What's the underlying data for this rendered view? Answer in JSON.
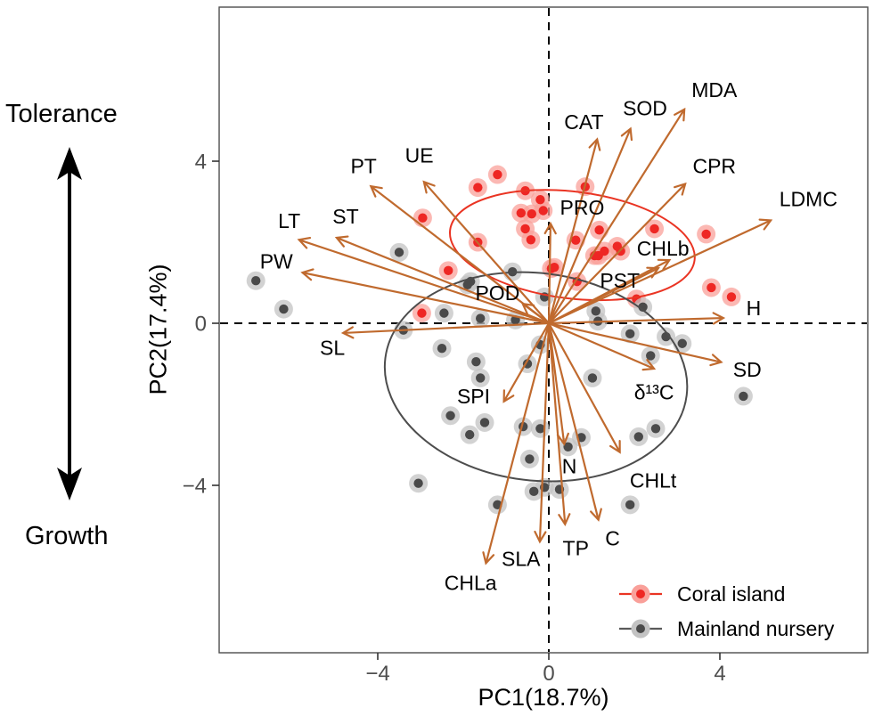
{
  "annotations": {
    "top_label": "Tolerance",
    "bottom_label": "Growth"
  },
  "axes": {
    "x_title": "PC1(18.7%)",
    "y_title": "PC2(17.4%)",
    "x_ticks": [
      -4,
      0,
      4
    ],
    "y_ticks": [
      4,
      0,
      -4
    ],
    "tick_color": "#4d4d4d",
    "panel_border_color": "#4d4d4d"
  },
  "legend": {
    "items": [
      {
        "label": "Coral island",
        "core_color": "#ee2724",
        "halo_color": "#f9a09a",
        "line_color": "#ea3423"
      },
      {
        "label": "Mainland nursery",
        "core_color": "#4a4a4a",
        "halo_color": "#c3c3c3",
        "line_color": "#5a5a5a"
      }
    ]
  },
  "chart_data": {
    "type": "scatter",
    "xlabel": "PC1(18.7%)",
    "ylabel": "PC2(17.4%)",
    "xlim": [
      -7.7,
      7.5
    ],
    "ylim": [
      -8.1,
      7.8
    ],
    "x_ticks": [
      -4,
      0,
      4
    ],
    "y_ticks": [
      -4,
      0,
      4
    ],
    "grid": false,
    "zero_lines_dashed": true,
    "legend_position": "inside-bottom-right",
    "vector_color": "#c06a2e",
    "series": [
      {
        "name": "Coral island",
        "core_color": "#ee2724",
        "halo_color": "#f9a09a",
        "points": [
          [
            -1.66,
            3.35
          ],
          [
            -1.2,
            3.67
          ],
          [
            -0.55,
            3.27
          ],
          [
            -0.2,
            3.05
          ],
          [
            0.85,
            3.37
          ],
          [
            -0.65,
            2.72
          ],
          [
            -0.4,
            2.7
          ],
          [
            -0.13,
            2.78
          ],
          [
            -0.55,
            2.33
          ],
          [
            -0.42,
            2.06
          ],
          [
            -1.66,
            2.0
          ],
          [
            1.18,
            2.3
          ],
          [
            0.63,
            2.05
          ],
          [
            1.6,
            1.9
          ],
          [
            1.16,
            1.67
          ],
          [
            0.06,
            1.35
          ],
          [
            0.66,
            1.03
          ],
          [
            2.47,
            2.33
          ],
          [
            3.68,
            2.2
          ],
          [
            -2.95,
            2.6
          ],
          [
            -2.35,
            1.3
          ],
          [
            -2.97,
            0.25
          ],
          [
            0.13,
            1.38
          ],
          [
            1.07,
            1.67
          ],
          [
            1.3,
            1.78
          ],
          [
            1.68,
            1.78
          ],
          [
            2.05,
            0.6
          ],
          [
            3.8,
            0.88
          ],
          [
            4.27,
            0.65
          ]
        ]
      },
      {
        "name": "Mainland nursery",
        "core_color": "#4a4a4a",
        "halo_color": "#c3c3c3",
        "points": [
          [
            -6.85,
            1.05
          ],
          [
            -6.2,
            0.35
          ],
          [
            -3.5,
            1.75
          ],
          [
            -1.9,
            0.95
          ],
          [
            -2.45,
            0.25
          ],
          [
            -0.85,
            1.27
          ],
          [
            -1.83,
            1.03
          ],
          [
            -0.1,
            0.65
          ],
          [
            -1.6,
            0.12
          ],
          [
            -0.78,
            0.08
          ],
          [
            -3.4,
            -0.17
          ],
          [
            -2.5,
            -0.62
          ],
          [
            -1.7,
            -0.95
          ],
          [
            -1.6,
            -1.35
          ],
          [
            -0.2,
            -0.53
          ],
          [
            -0.5,
            -1.0
          ],
          [
            -2.3,
            -2.28
          ],
          [
            -1.85,
            -2.75
          ],
          [
            -1.5,
            -2.45
          ],
          [
            -0.6,
            -2.55
          ],
          [
            -0.2,
            -2.6
          ],
          [
            -0.45,
            -3.35
          ],
          [
            -3.05,
            -3.95
          ],
          [
            -1.2,
            -4.48
          ],
          [
            -0.35,
            -4.15
          ],
          [
            -0.1,
            -4.05
          ],
          [
            0.25,
            -4.1
          ],
          [
            1.9,
            -4.48
          ],
          [
            0.45,
            -3.05
          ],
          [
            0.76,
            -2.82
          ],
          [
            2.1,
            -2.8
          ],
          [
            2.5,
            -2.6
          ],
          [
            4.55,
            -1.8
          ],
          [
            2.38,
            -0.8
          ],
          [
            2.74,
            -0.33
          ],
          [
            3.12,
            -0.5
          ],
          [
            1.9,
            -0.26
          ],
          [
            1.1,
            0.3
          ],
          [
            1.15,
            0.05
          ],
          [
            2.2,
            0.4
          ],
          [
            1.02,
            -1.35
          ]
        ]
      }
    ],
    "ellipses": [
      {
        "group": "Coral island",
        "cx": 0.55,
        "cy": 1.93,
        "rx": 2.88,
        "ry": 1.32,
        "angle_deg": 7,
        "color": "#ea3423"
      },
      {
        "group": "Mainland nursery",
        "cx": -0.3,
        "cy": -1.32,
        "rx": 3.55,
        "ry": 2.56,
        "angle_deg": 7,
        "color": "#4d4d4d"
      }
    ],
    "vectors": [
      {
        "name": "MDA",
        "tip": [
          3.17,
          5.28
        ],
        "label": [
          3.87,
          5.72
        ]
      },
      {
        "name": "SOD",
        "tip": [
          1.91,
          4.8
        ],
        "label": [
          2.25,
          5.26
        ]
      },
      {
        "name": "CAT",
        "tip": [
          1.13,
          4.54
        ],
        "label": [
          0.82,
          4.93
        ]
      },
      {
        "name": "CPR",
        "tip": [
          3.19,
          3.44
        ],
        "label": [
          3.87,
          3.84
        ]
      },
      {
        "name": "LDMC",
        "tip": [
          5.19,
          2.54
        ],
        "label": [
          6.07,
          3.02
        ]
      },
      {
        "name": "UE",
        "tip": [
          -2.92,
          3.49
        ],
        "label": [
          -3.03,
          4.1
        ]
      },
      {
        "name": "PT",
        "tip": [
          -4.16,
          3.38
        ],
        "label": [
          -4.33,
          3.84
        ]
      },
      {
        "name": "ST",
        "tip": [
          -4.96,
          2.11
        ],
        "label": [
          -4.75,
          2.59
        ]
      },
      {
        "name": "LT",
        "tip": [
          -5.84,
          2.06
        ],
        "label": [
          -6.07,
          2.48
        ]
      },
      {
        "name": "PW",
        "tip": [
          -5.76,
          1.25
        ],
        "label": [
          -6.37,
          1.49
        ]
      },
      {
        "name": "SL",
        "tip": [
          -4.81,
          -0.24
        ],
        "label": [
          -5.06,
          -0.65
        ]
      },
      {
        "name": "PRO",
        "tip": [
          0.04,
          2.46
        ],
        "label": [
          0.78,
          2.81
        ]
      },
      {
        "name": "POD",
        "tip": [
          -0.61,
          0.48
        ],
        "label": [
          -1.2,
          0.7
        ]
      },
      {
        "name": "PST",
        "tip": [
          2.56,
          1.36
        ],
        "label": [
          1.66,
          1.01
        ]
      },
      {
        "name": "CHLb",
        "tip": [
          2.82,
          1.56
        ],
        "label": [
          2.67,
          1.8
        ]
      },
      {
        "name": "H",
        "tip": [
          4.08,
          0.13
        ],
        "label": [
          4.79,
          0.33
        ]
      },
      {
        "name": "SD",
        "tip": [
          4.03,
          -0.96
        ],
        "label": [
          4.64,
          -1.18
        ]
      },
      {
        "name": "δ¹³C",
        "tip": [
          2.46,
          -1.12
        ],
        "label": [
          2.46,
          -1.75
        ]
      },
      {
        "name": "SPI",
        "tip": [
          -1.05,
          -1.93
        ],
        "label": [
          -1.76,
          -1.84
        ]
      },
      {
        "name": "N",
        "tip": [
          0.36,
          -2.98
        ],
        "label": [
          0.48,
          -3.57
        ]
      },
      {
        "name": "CHLt",
        "tip": [
          1.66,
          -3.18
        ],
        "label": [
          2.44,
          -3.92
        ]
      },
      {
        "name": "C",
        "tip": [
          1.16,
          -4.85
        ],
        "label": [
          1.49,
          -5.35
        ]
      },
      {
        "name": "TP",
        "tip": [
          0.38,
          -4.96
        ],
        "label": [
          0.63,
          -5.59
        ]
      },
      {
        "name": "SLA",
        "tip": [
          -0.21,
          -5.39
        ],
        "label": [
          -0.65,
          -5.85
        ]
      },
      {
        "name": "CHLa",
        "tip": [
          -1.47,
          -5.92
        ],
        "label": [
          -1.83,
          -6.45
        ]
      }
    ]
  }
}
